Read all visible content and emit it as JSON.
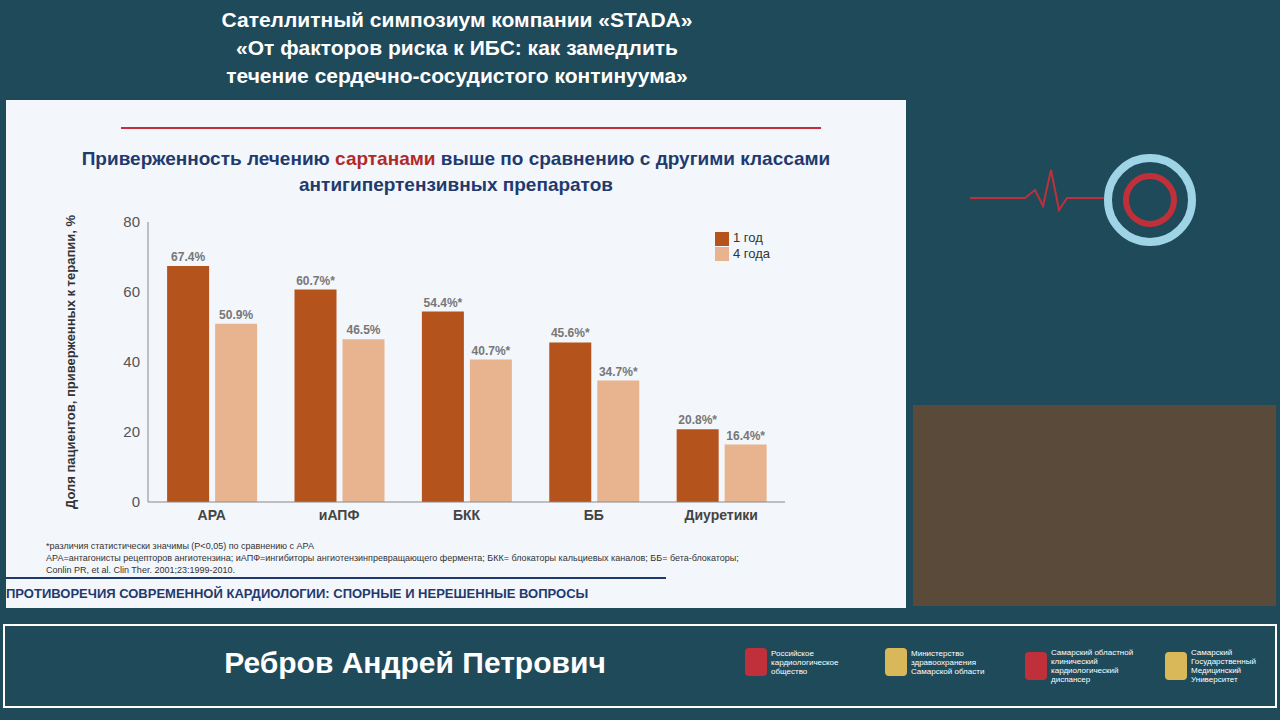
{
  "header": {
    "lines": [
      "Сателлитный симпозиум компании «STADA»",
      "«От факторов риска к ИБС: как замедлить",
      "течение сердечно-сосудистого континуума»"
    ]
  },
  "chart_data": {
    "type": "bar",
    "title": [
      "Приверженность лечению",
      "сартанами",
      "выше по сравнению с другими классами антигипертензивных препаратов"
    ],
    "y_label": "Доля пациентов, приверженных к терапии, %",
    "categories": [
      "АРА",
      "иАПФ",
      "БКК",
      "ББ",
      "Диуретики"
    ],
    "series": [
      {
        "name": "1 год",
        "color": "#b5531c",
        "values": [
          67.4,
          60.7,
          54.4,
          45.6,
          20.8
        ],
        "value_labels": [
          "67.4%",
          "60.7%*",
          "54.4%*",
          "45.6%*",
          "20.8%*"
        ]
      },
      {
        "name": "4 года",
        "color": "#e8b48f",
        "values": [
          50.9,
          46.5,
          40.7,
          34.7,
          16.4
        ],
        "value_labels": [
          "50.9%",
          "46.5%",
          "40.7%*",
          "34.7%*",
          "16.4%*"
        ]
      }
    ],
    "ylim": [
      0,
      80
    ],
    "yticks": [
      0,
      20,
      40,
      60,
      80
    ],
    "grid": false,
    "legend": "upper right",
    "data_labels": true,
    "footnotes": [
      "*различия статистически значимы (P<0,05) по сравнению с АРА",
      "АРА=антагонисты рецепторов ангиотензина; иАПФ=ингибиторы ангиотензинпревращающего фермента; БКК= блокаторы кальциевых каналов; ББ= бета-блокаторы;",
      "Conlin PR, et al. Clin Ther. 2001;23:1999-2010."
    ],
    "banner": "ПРОТИВОРЕЧИЯ СОВРЕМЕННОЙ КАРДИОЛОГИИ: СПОРНЫЕ И НЕРЕШЕННЫЕ ВОПРОСЫ"
  },
  "speaker": "Ребров Андрей Петрович",
  "logos": [
    "Российское кардиологическое общество",
    "Министерство здравоохранения Самарской области",
    "Самарский областной клинический кардиологический диспансер",
    "Самарский Государственный Медицинский Университет"
  ]
}
